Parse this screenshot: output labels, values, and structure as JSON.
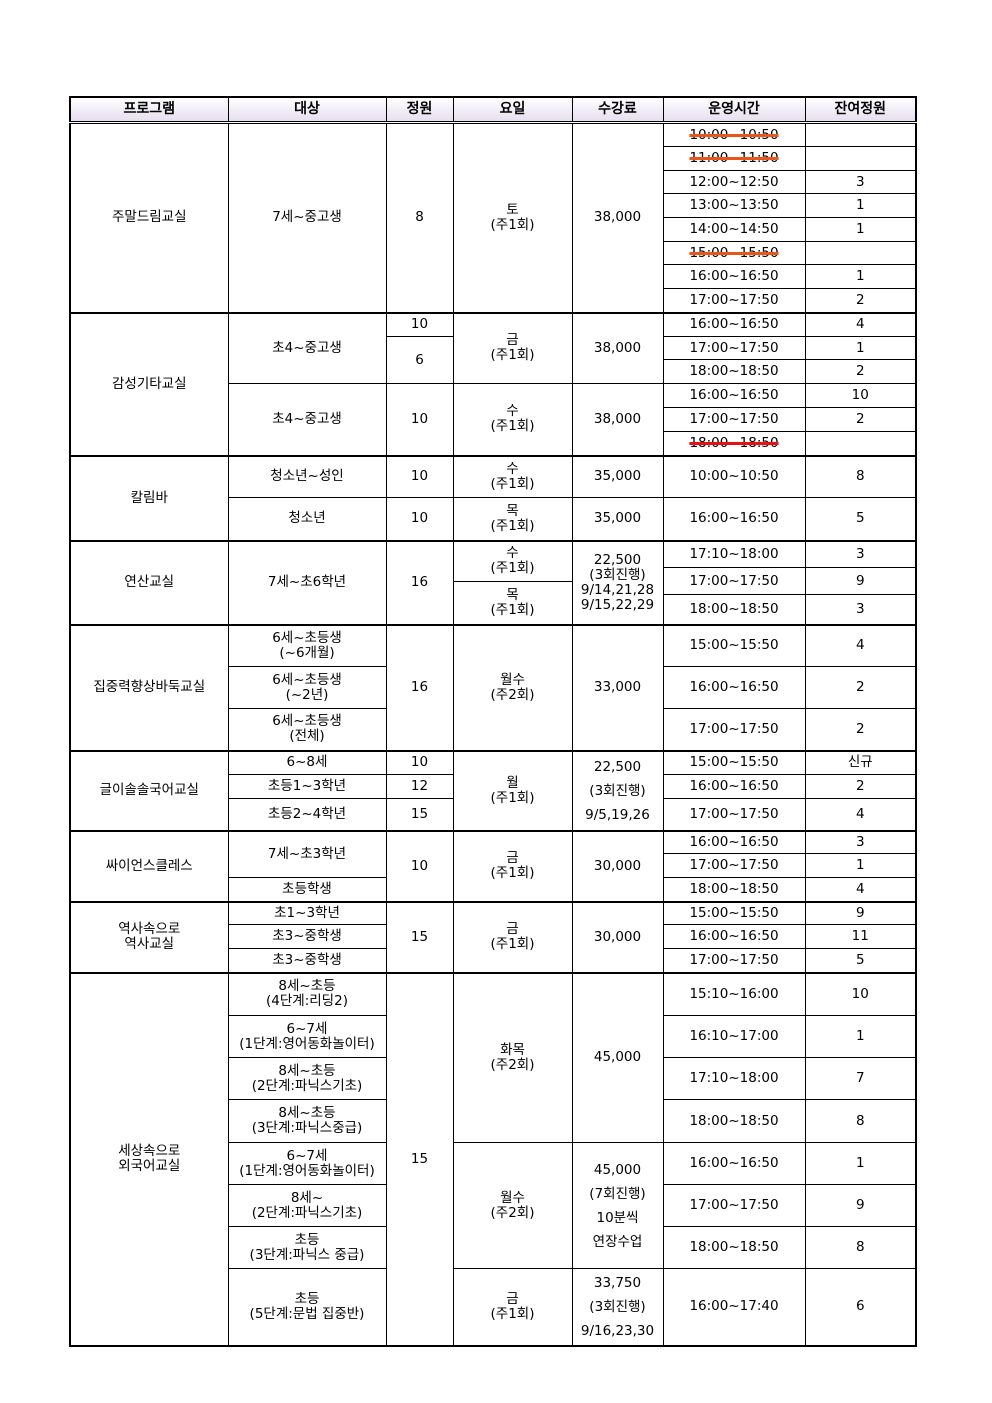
{
  "header": [
    "프로그램",
    "대상",
    "정원",
    "요일",
    "수강료",
    "운영시간",
    "잔여정원"
  ],
  "strike_colors": [
    "#e8561a",
    "#e81010"
  ],
  "sections": [
    {
      "program": "주말드림교실",
      "targets": [
        "7세~중고생"
      ],
      "capacities": [
        "8"
      ],
      "days": [
        "토\n(주1회)"
      ],
      "fees": [
        "38,000"
      ],
      "times": [
        "10:00~10:50",
        "11:00~11:50",
        "12:00~12:50",
        "13:00~13:50",
        "14:00~14:50",
        "15:00~15:50",
        "16:00~16:50",
        "17:00~17:50"
      ],
      "cancelled_times": [
        "10:00~10:50",
        "11:00~11:50",
        "15:00~15:50"
      ],
      "remaining": [
        "",
        "",
        "3",
        "1",
        "1",
        "",
        "1",
        "2"
      ]
    },
    {
      "program": "감성기타교실",
      "targets": [
        "초4~중고생",
        "초4~중고생"
      ],
      "capacities": [
        "10",
        "6",
        "10"
      ],
      "days": [
        "금\n(주1회)",
        "수\n(주1회)"
      ],
      "fees": [
        "38,000",
        "38,000"
      ],
      "times": [
        "16:00~16:50",
        "17:00~17:50",
        "18:00~18:50",
        "16:00~16:50",
        "17:00~17:50",
        "18:00~18:50"
      ],
      "cancelled_times": [
        "18:00~18:50"
      ],
      "remaining": [
        "4",
        "1",
        "2",
        "10",
        "2",
        ""
      ]
    },
    {
      "program": "칼림바",
      "targets": [
        "청소년~성인",
        "청소년"
      ],
      "capacities": [
        "10",
        "10"
      ],
      "days": [
        "수\n(주1회)",
        "목\n(주1회)"
      ],
      "fees": [
        "35,000",
        "35,000"
      ],
      "times": [
        "10:00~10:50",
        "16:00~16:50"
      ],
      "remaining": [
        "8",
        "5"
      ]
    },
    {
      "program": "연산교실",
      "targets": [
        "7세~초6학년"
      ],
      "capacities": [
        "16"
      ],
      "days": [
        "수\n(주1회)",
        "목\n(주1회)"
      ],
      "fees": [
        "22,500\n(3회진행)\n9/14,21,28\n9/15,22,29"
      ],
      "times": [
        "17:10~18:00",
        "17:00~17:50",
        "18:00~18:50"
      ],
      "remaining": [
        "3",
        "9",
        "3"
      ]
    },
    {
      "program": "집중력향상바둑교실",
      "targets": [
        "6세~초등생\n(~6개월)",
        "6세~초등생\n(~2년)",
        "6세~초등생\n(전체)"
      ],
      "capacities": [
        "16"
      ],
      "days": [
        "월수\n(주2회)"
      ],
      "fees": [
        "33,000"
      ],
      "times": [
        "15:00~15:50",
        "16:00~16:50",
        "17:00~17:50"
      ],
      "remaining": [
        "4",
        "2",
        "2"
      ]
    },
    {
      "program": "글이솔솔국어교실",
      "targets": [
        "6~8세",
        "초등1~3학년",
        "초등2~4학년"
      ],
      "capacities": [
        "10",
        "12",
        "15"
      ],
      "days": [
        "월\n(주1회)"
      ],
      "fees": [
        "22,500\n(3회진행)\n9/5,19,26"
      ],
      "times": [
        "15:00~15:50",
        "16:00~16:50",
        "17:00~17:50"
      ],
      "remaining": [
        "신규",
        "2",
        "4"
      ]
    },
    {
      "program": "싸이언스클레스",
      "targets": [
        "7세~초3학년",
        "초등학생"
      ],
      "capacities": [
        "10"
      ],
      "days": [
        "금\n(주1회)"
      ],
      "fees": [
        "30,000"
      ],
      "times": [
        "16:00~16:50",
        "17:00~17:50",
        "18:00~18:50"
      ],
      "remaining": [
        "3",
        "1",
        "4"
      ]
    },
    {
      "program": "역사속으로\n역사교실",
      "targets": [
        "초1~3학년",
        "초3~중학생",
        "초3~중학생"
      ],
      "capacities": [
        "15"
      ],
      "days": [
        "금\n(주1회)"
      ],
      "fees": [
        "30,000"
      ],
      "times": [
        "15:00~15:50",
        "16:00~16:50",
        "17:00~17:50"
      ],
      "remaining": [
        "9",
        "11",
        "5"
      ]
    },
    {
      "program": "세상속으로\n외국어교실",
      "targets": [
        "8세~초등\n(4단계:리딩2)",
        "6~7세\n(1단계:영어동화놀이터)",
        "8세~초등\n(2단계:파닉스기초)",
        "8세~초등\n(3단계:파닉스중급)",
        "6~7세\n(1단계:영어동화놀이터)",
        "8세~\n(2단계:파닉스기초)",
        "초등\n(3단계:파닉스 중급)",
        "초등\n(5단계:문법 집중반)"
      ],
      "capacities": [
        "15"
      ],
      "days": [
        "화목\n(주2회)",
        "월수\n(주2회)",
        "금\n(주1회)"
      ],
      "fees": [
        "45,000",
        "45,000\n(7회진행)\n10분씩\n연장수업",
        "33,750\n(3회진행)\n9/16,23,30"
      ],
      "times": [
        "15:10~16:00",
        "16:10~17:00",
        "17:10~18:00",
        "18:00~18:50",
        "16:00~16:50",
        "17:00~17:50",
        "18:00~18:50",
        "16:00~17:40"
      ],
      "remaining": [
        "10",
        "1",
        "7",
        "8",
        "1",
        "9",
        "8",
        "6"
      ]
    }
  ]
}
